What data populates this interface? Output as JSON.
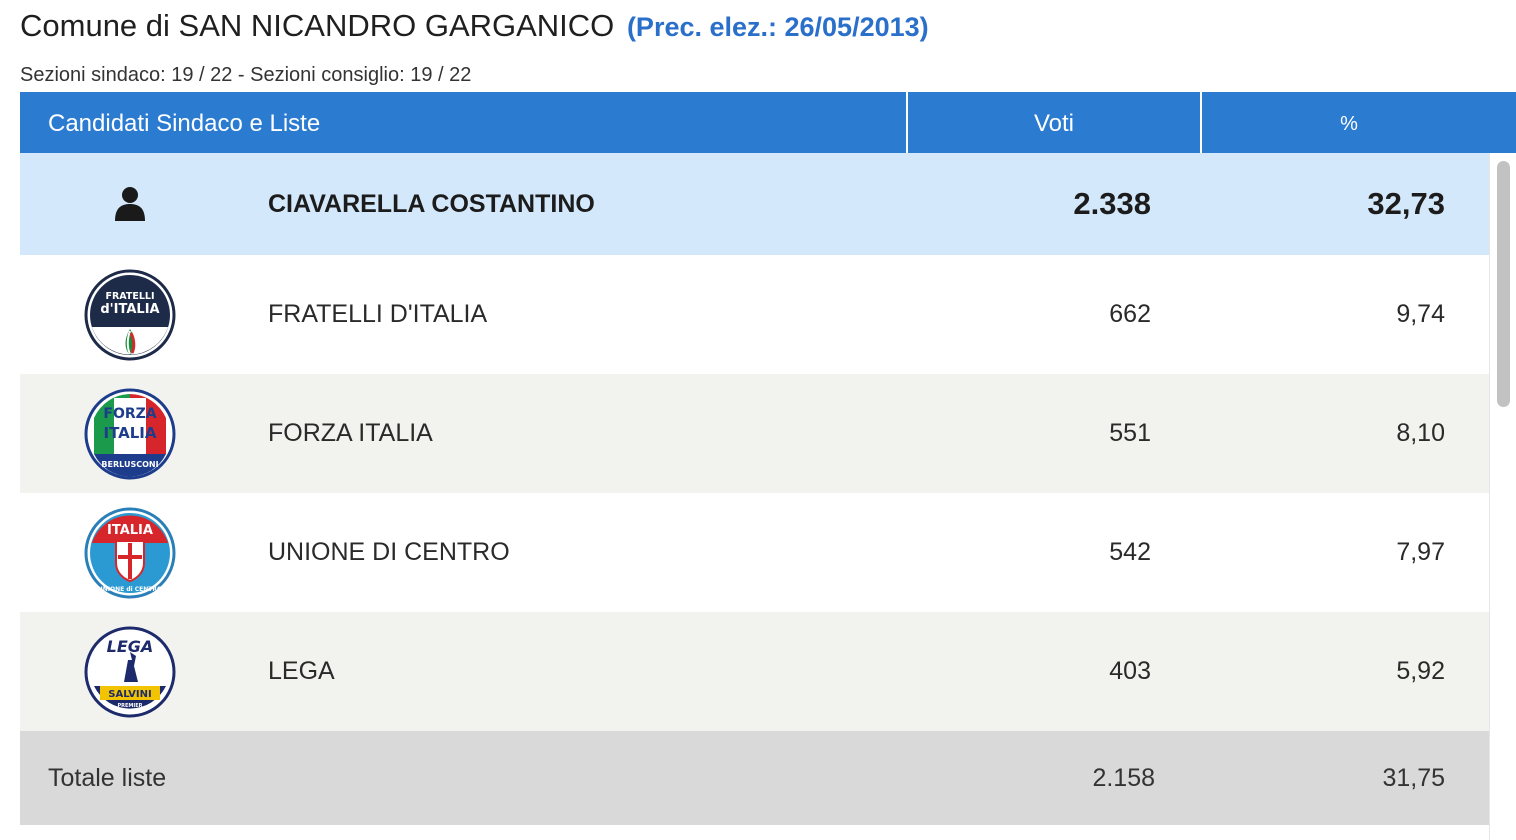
{
  "header": {
    "title": "Comune di SAN NICANDRO GARGANICO",
    "previous_election": "(Prec. elez.: 26/05/2013)",
    "sections": "Sezioni sindaco: 19 / 22 - Sezioni consiglio: 19 / 22"
  },
  "table": {
    "columns": {
      "name": "Candidati Sindaco e Liste",
      "votes": "Voti",
      "percent": "%"
    },
    "candidate": {
      "icon": "person-icon",
      "name": "CIAVARELLA COSTANTINO",
      "votes": "2.338",
      "percent": "32,73"
    },
    "lists": [
      {
        "name": "FRATELLI D'ITALIA",
        "votes": "662",
        "percent": "9,74",
        "logo": "fratelli-ditalia-logo",
        "logo_text": [
          "FRATELLI",
          "d'ITALIA"
        ]
      },
      {
        "name": "FORZA ITALIA",
        "votes": "551",
        "percent": "8,10",
        "logo": "forza-italia-logo",
        "logo_text": [
          "FORZA",
          "ITALIA",
          "BERLUSCONI"
        ]
      },
      {
        "name": "UNIONE DI CENTRO",
        "votes": "542",
        "percent": "7,97",
        "logo": "unione-di-centro-logo",
        "logo_text": [
          "ITALIA",
          "UNIONE di CENTRO"
        ]
      },
      {
        "name": "LEGA",
        "votes": "403",
        "percent": "5,92",
        "logo": "lega-logo",
        "logo_text": [
          "LEGA",
          "SALVINI",
          "PREMIER"
        ]
      }
    ],
    "total": {
      "label": "Totale liste",
      "votes": "2.158",
      "percent": "31,75"
    }
  },
  "colors": {
    "header_bg": "#2b7bd1",
    "candidate_row_bg": "#d4e8fb",
    "total_row_bg": "#d9d9d9",
    "alt_row_bg": "#f2f3ee",
    "link_blue": "#2a6fc9"
  }
}
